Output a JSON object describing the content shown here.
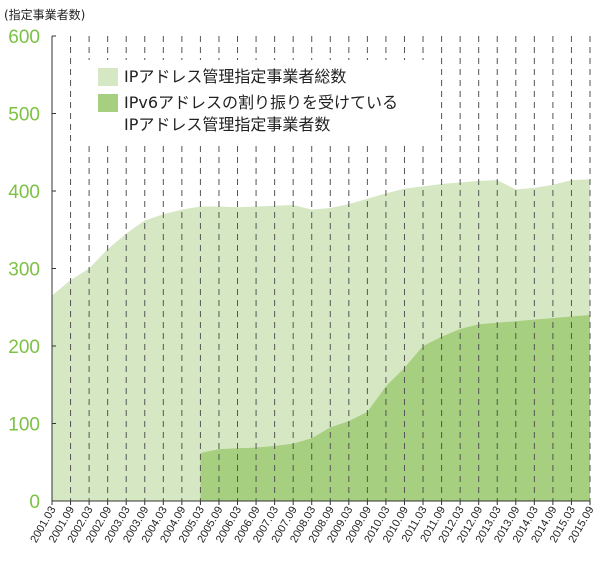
{
  "chart_data": {
    "type": "area",
    "ylabel": "(指定事業者数)",
    "ylim": [
      0,
      600
    ],
    "yticks": [
      0,
      100,
      200,
      300,
      400,
      500,
      600
    ],
    "grid": "vertical-dashed",
    "legend_position": "top-left",
    "categories": [
      "2001.03",
      "2001.09",
      "2002.03",
      "2002.09",
      "2003.03",
      "2003.09",
      "2004.03",
      "2004.09",
      "2005.03",
      "2005.09",
      "2006.03",
      "2006.09",
      "2007.03",
      "2007.09",
      "2008.03",
      "2008.09",
      "2009.03",
      "2009.09",
      "2010.03",
      "2010.09",
      "2011.03",
      "2011.09",
      "2012.03",
      "2012.09",
      "2013.03",
      "2013.09",
      "2014.03",
      "2014.09",
      "2015.03",
      "2015.09"
    ],
    "series": [
      {
        "name": "IPアドレス管理指定事業者総数",
        "color": "#d6e8c3",
        "values": [
          265,
          285,
          300,
          325,
          345,
          362,
          370,
          376,
          380,
          380,
          379,
          380,
          381,
          382,
          376,
          378,
          383,
          390,
          397,
          403,
          406,
          409,
          411,
          413,
          414,
          402,
          404,
          408,
          414,
          415
        ]
      },
      {
        "name": "IPv6アドレスの割り振りを受けている\nIPアドレス管理指定事業者数",
        "color": "#a6cf7f",
        "values": [
          null,
          null,
          null,
          null,
          null,
          null,
          null,
          null,
          62,
          67,
          68,
          69,
          71,
          74,
          81,
          95,
          103,
          115,
          148,
          172,
          200,
          212,
          222,
          228,
          230,
          232,
          234,
          236,
          238,
          240
        ]
      }
    ]
  }
}
